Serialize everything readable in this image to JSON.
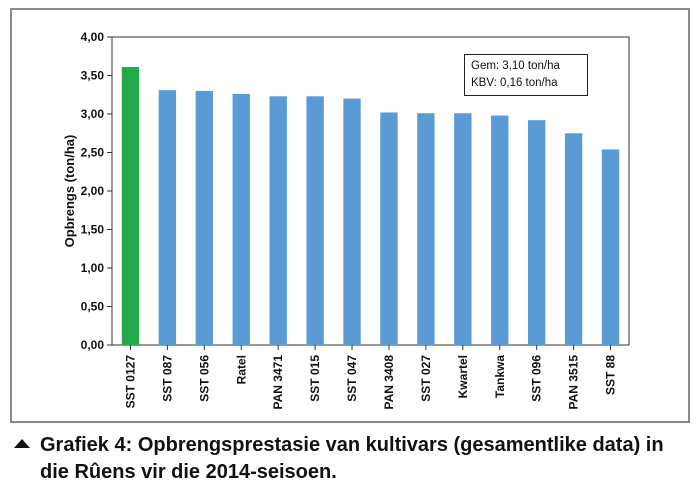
{
  "chart_data": {
    "type": "bar",
    "ylabel": "Opbrengs (ton/ha)",
    "ylim": [
      0,
      4.0
    ],
    "yticks": [
      "0,00",
      "0,50",
      "1,00",
      "1,50",
      "2,00",
      "2,50",
      "3,00",
      "3,50",
      "4,00"
    ],
    "categories": [
      "SST 0127",
      "SST 087",
      "SST 056",
      "Ratel",
      "PAN 3471",
      "SST 015",
      "SST 047",
      "PAN 3408",
      "SST 027",
      "Kwartel",
      "Tankwa",
      "SST 096",
      "PAN 3515",
      "SST 88"
    ],
    "values": [
      3.61,
      3.31,
      3.3,
      3.26,
      3.23,
      3.23,
      3.2,
      3.02,
      3.01,
      3.01,
      2.98,
      2.92,
      2.75,
      2.54
    ],
    "colors": [
      "#22a94a",
      "#5b9bd5",
      "#5b9bd5",
      "#5b9bd5",
      "#5b9bd5",
      "#5b9bd5",
      "#5b9bd5",
      "#5b9bd5",
      "#5b9bd5",
      "#5b9bd5",
      "#5b9bd5",
      "#5b9bd5",
      "#5b9bd5",
      "#5b9bd5"
    ],
    "grid": false,
    "legend": "none",
    "annotations": [
      "Gem: 3,10 ton/ha",
      "KBV:  0,16 ton/ha"
    ]
  },
  "caption": "Grafiek 4: Opbrengsprestasie van kultivars (gesamentlike data) in die Rûens vir die 2014-seisoen.",
  "caption_icon": "triangle-up-icon"
}
